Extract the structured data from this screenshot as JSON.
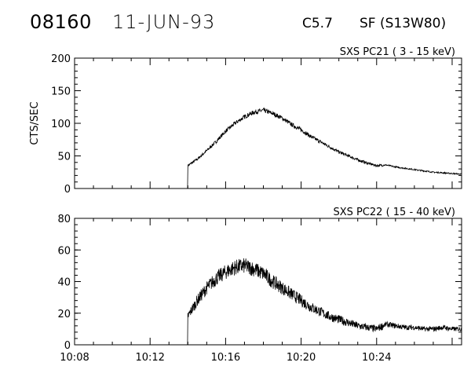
{
  "header": {
    "event_id": "08160",
    "date": "11-JUN-93",
    "flare_class": "C5.7",
    "location": "SF (S13W80)"
  },
  "chart_data": [
    {
      "type": "line",
      "title": "SXS PC21  (  3 - 15 keV)",
      "ylabel": "CTS/SEC",
      "xlabel": "",
      "xlim": [
        "10:08",
        "10:28:30"
      ],
      "ylim": [
        0,
        200
      ],
      "yticks": [
        "0",
        "50",
        "100",
        "150",
        "200"
      ],
      "xticklabels": [],
      "grid": false,
      "series": [
        {
          "x": [
            "10:08",
            "10:13:59",
            "10:14:00",
            "10:14:30",
            "10:15:00",
            "10:15:30",
            "10:16:00",
            "10:16:30",
            "10:17:00",
            "10:17:30",
            "10:18:00",
            "10:18:30",
            "10:19:00",
            "10:19:30",
            "10:20:00",
            "10:20:30",
            "10:21:00",
            "10:21:30",
            "10:22:00",
            "10:22:30",
            "10:23:00",
            "10:23:30",
            "10:24:00",
            "10:24:30",
            "10:25:00",
            "10:25:30",
            "10:26:00",
            "10:26:30",
            "10:27:00",
            "10:27:30",
            "10:28:00",
            "10:28:30"
          ],
          "values": [
            0,
            0,
            35,
            45,
            58,
            72,
            88,
            100,
            110,
            117,
            120,
            115,
            108,
            98,
            90,
            80,
            72,
            64,
            56,
            50,
            44,
            39,
            35,
            36,
            33,
            31,
            29,
            27,
            25,
            24,
            23,
            22
          ]
        }
      ]
    },
    {
      "type": "line",
      "title": "SXS PC22  ( 15 - 40 keV)",
      "ylabel": "",
      "xlabel": "",
      "xlim": [
        "10:08",
        "10:28:30"
      ],
      "ylim": [
        0,
        80
      ],
      "yticks": [
        "0",
        "20",
        "40",
        "60",
        "80"
      ],
      "xticklabels": [
        "10:08",
        "10:12",
        "10:16",
        "10:20",
        "10:24"
      ],
      "grid": false,
      "series": [
        {
          "x": [
            "10:08",
            "10:13:59",
            "10:14:00",
            "10:14:30",
            "10:15:00",
            "10:15:30",
            "10:16:00",
            "10:16:30",
            "10:17:00",
            "10:17:30",
            "10:18:00",
            "10:18:30",
            "10:19:00",
            "10:19:30",
            "10:20:00",
            "10:20:30",
            "10:21:00",
            "10:21:30",
            "10:22:00",
            "10:22:30",
            "10:23:00",
            "10:23:30",
            "10:24:00",
            "10:24:30",
            "10:25:00",
            "10:25:30",
            "10:26:00",
            "10:26:30",
            "10:27:00",
            "10:27:30",
            "10:28:00",
            "10:28:30"
          ],
          "values": [
            0,
            0,
            18,
            28,
            36,
            42,
            46,
            49,
            50,
            48,
            45,
            40,
            36,
            32,
            28,
            24,
            21,
            18,
            16,
            14,
            12,
            11,
            10,
            13,
            12,
            11,
            11,
            10,
            10,
            11,
            10,
            10
          ]
        }
      ]
    }
  ]
}
